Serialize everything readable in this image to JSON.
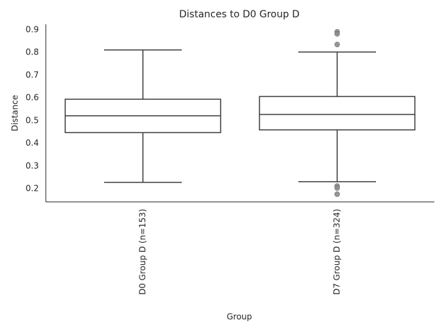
{
  "chart_data": {
    "type": "box",
    "title": "Distances to D0 Group D",
    "xlabel": "Group",
    "ylabel": "Distance",
    "categories": [
      "D0 Group D (n=153)",
      "D7 Group D (n=324)"
    ],
    "boxes": [
      {
        "whislo": 0.228,
        "q1": 0.447,
        "med": 0.521,
        "q3": 0.594,
        "whishi": 0.811,
        "fliers": []
      },
      {
        "whislo": 0.231,
        "q1": 0.459,
        "med": 0.527,
        "q3": 0.606,
        "whishi": 0.802,
        "fliers": [
          0.891,
          0.882,
          0.835,
          0.212,
          0.203,
          0.176
        ]
      }
    ],
    "color": "#3f3f3f",
    "flier_color": "#8c8c8c",
    "ylim": [
      0.142,
      0.924
    ],
    "yticks": [
      0.2,
      0.3,
      0.4,
      0.5,
      0.6,
      0.7,
      0.8,
      0.9
    ]
  }
}
